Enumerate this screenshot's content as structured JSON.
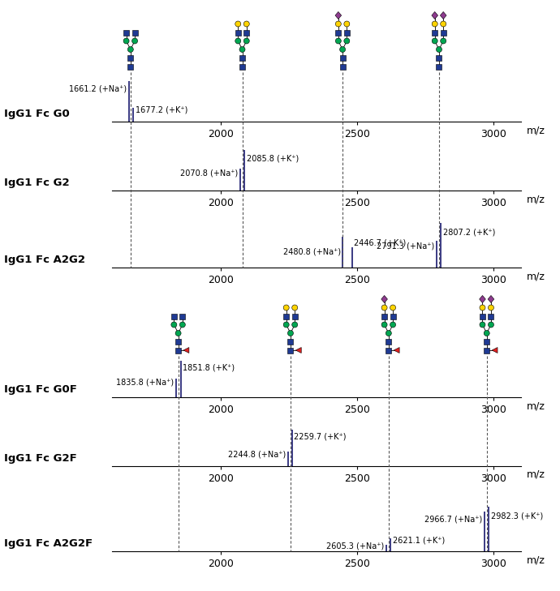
{
  "chart_data": [
    {
      "type": "stick",
      "title": "IgG1 Fc G0",
      "x_label": "m/z",
      "xlim": [
        1600,
        3100
      ],
      "xticks": [
        2000,
        2500,
        3000
      ],
      "ylim": [
        0,
        110
      ],
      "tick_labels": "x",
      "color": "#2b2b7a",
      "peaks": [
        {
          "mz": 1661.2,
          "intensity": 100,
          "label": "1661.2 (+Na⁺)"
        },
        {
          "mz": 1677.2,
          "intensity": 35,
          "label": "1677.2 (+K⁺)"
        }
      ]
    },
    {
      "type": "stick",
      "title": "IgG1 Fc G2",
      "x_label": "m/z",
      "xlim": [
        1600,
        3100
      ],
      "xticks": [
        2000,
        2500,
        3000
      ],
      "ylim": [
        0,
        110
      ],
      "tick_labels": "x",
      "color": "#2b2b7a",
      "peaks": [
        {
          "mz": 2070.8,
          "intensity": 55,
          "label": "2070.8 (+Na⁺)"
        },
        {
          "mz": 2085.8,
          "intensity": 100,
          "label": "2085.8 (+K⁺)"
        }
      ]
    },
    {
      "type": "stick",
      "title": "IgG1 Fc A2G2",
      "x_label": "m/z",
      "xlim": [
        1600,
        3100
      ],
      "xticks": [
        2000,
        2500,
        3000
      ],
      "ylim": [
        0,
        110
      ],
      "tick_labels": "x",
      "color": "#2b2b7a",
      "peaks": [
        {
          "mz": 2480.8,
          "intensity": 45,
          "label": "2480.8 (+Na⁺)"
        },
        {
          "mz": 2446.7,
          "intensity": 70,
          "label": "2446.7 (+K⁺)"
        },
        {
          "mz": 2791.3,
          "intensity": 60,
          "label": "2791.3 (+Na⁺)"
        },
        {
          "mz": 2807.2,
          "intensity": 100,
          "label": "2807.2 (+K⁺)"
        }
      ]
    },
    {
      "type": "stick",
      "title": "IgG1 Fc G0F",
      "x_label": "m/z",
      "xlim": [
        1600,
        3100
      ],
      "xticks": [
        2000,
        2500,
        3000
      ],
      "ylim": [
        0,
        110
      ],
      "tick_labels": "x",
      "color": "#2b2b7a",
      "peaks": [
        {
          "mz": 1835.8,
          "intensity": 50,
          "label": "1835.8 (+Na⁺)"
        },
        {
          "mz": 1851.8,
          "intensity": 100,
          "label": "1851.8 (+K⁺)"
        }
      ]
    },
    {
      "type": "stick",
      "title": "IgG1 Fc G2F",
      "x_label": "m/z",
      "xlim": [
        1600,
        3100
      ],
      "xticks": [
        2000,
        2500,
        3000
      ],
      "ylim": [
        0,
        110
      ],
      "tick_labels": "x",
      "color": "#2b2b7a",
      "peaks": [
        {
          "mz": 2244.8,
          "intensity": 40,
          "label": "2244.8 (+Na⁺)"
        },
        {
          "mz": 2259.7,
          "intensity": 100,
          "label": "2259.7 (+K⁺)"
        }
      ]
    },
    {
      "type": "stick",
      "title": "IgG1 Fc A2G2F",
      "x_label": "m/z",
      "xlim": [
        1600,
        3100
      ],
      "xticks": [
        2000,
        2500,
        3000
      ],
      "ylim": [
        0,
        110
      ],
      "tick_labels": "x",
      "color": "#2b2b7a",
      "peaks": [
        {
          "mz": 2605.3,
          "intensity": 15,
          "label": "2605.3 (+Na⁺)"
        },
        {
          "mz": 2621.1,
          "intensity": 30,
          "label": "2621.1 (+K⁺)"
        },
        {
          "mz": 2966.7,
          "intensity": 90,
          "label": "2966.7 (+Na⁺)"
        },
        {
          "mz": 2982.3,
          "intensity": 100,
          "label": "2982.3 (+K⁺)"
        }
      ]
    }
  ],
  "glycan_structures": [
    [
      {
        "mz": 1668,
        "galactose": 0,
        "sialic_acid": 0,
        "fucose": false
      },
      {
        "mz": 2078,
        "galactose": 2,
        "sialic_acid": 0,
        "fucose": false
      },
      {
        "mz": 2446,
        "galactose": 2,
        "sialic_acid": 1,
        "fucose": false
      },
      {
        "mz": 2800,
        "galactose": 2,
        "sialic_acid": 2,
        "fucose": false
      }
    ],
    [
      {
        "mz": 1843,
        "galactose": 0,
        "sialic_acid": 0,
        "fucose": true
      },
      {
        "mz": 2255,
        "galactose": 2,
        "sialic_acid": 0,
        "fucose": true
      },
      {
        "mz": 2615,
        "galactose": 2,
        "sialic_acid": 1,
        "fucose": true
      },
      {
        "mz": 2975,
        "galactose": 2,
        "sialic_acid": 2,
        "fucose": true
      }
    ]
  ]
}
